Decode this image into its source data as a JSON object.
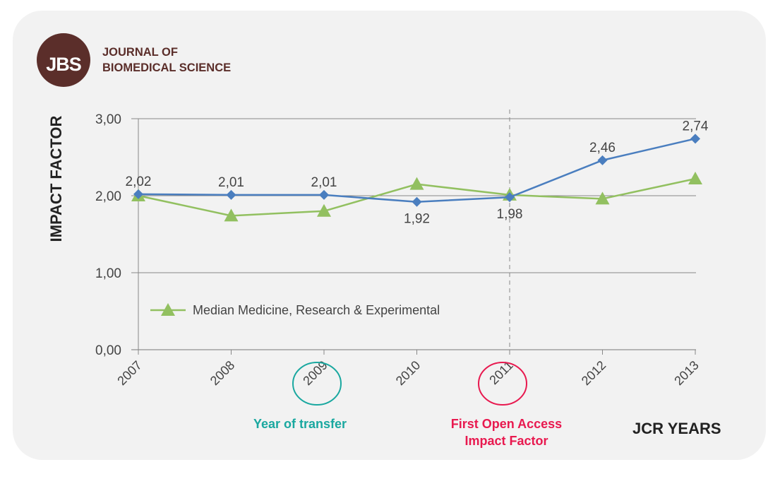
{
  "logo": {
    "text": "JBS",
    "title_line1": "JOURNAL OF",
    "title_line2": "BIOMEDICAL SCIENCE"
  },
  "chart_data": {
    "type": "line",
    "xlabel": "JCR YEARS",
    "ylabel": "IMPACT FACTOR",
    "categories": [
      "2007",
      "2008",
      "2009",
      "2010",
      "2011",
      "2012",
      "2013"
    ],
    "ylim": [
      0,
      3
    ],
    "yticks": [
      "0,00",
      "1,00",
      "2,00",
      "3,00"
    ],
    "series": [
      {
        "name": "Journal of Biomedical Science",
        "color": "#4a7ebf",
        "marker": "diamond",
        "values": [
          2.02,
          2.01,
          2.01,
          1.92,
          1.98,
          2.46,
          2.74
        ],
        "labels": [
          "2,02",
          "2,01",
          "2,01",
          "1,92",
          "1,98",
          "2,46",
          "2,74"
        ]
      },
      {
        "name": "Median Medicine, Research & Experimental",
        "color": "#92c060",
        "marker": "triangle",
        "values": [
          2.0,
          1.74,
          1.8,
          2.15,
          2.01,
          1.96,
          2.22
        ]
      }
    ],
    "annotations": [
      {
        "year": "2009",
        "text": "Year of transfer",
        "color": "#1aa8a0"
      },
      {
        "year": "2011",
        "text_line1": "First Open Access",
        "text_line2": "Impact Factor",
        "color": "#e8194f"
      }
    ]
  }
}
